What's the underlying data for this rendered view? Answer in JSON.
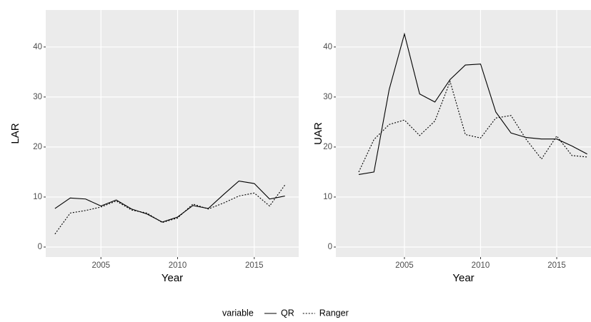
{
  "chart_data": [
    {
      "type": "line",
      "x_label": "Year",
      "y_label": "LAR",
      "legend_title": "variable",
      "x": [
        2002,
        2003,
        2004,
        2005,
        2006,
        2007,
        2008,
        2009,
        2010,
        2011,
        2012,
        2013,
        2014,
        2015,
        2016,
        2017
      ],
      "series": [
        {
          "name": "QR",
          "color": "#000000",
          "dash": "solid",
          "values": [
            7.7,
            9.8,
            9.6,
            8.2,
            9.4,
            7.6,
            6.6,
            5.0,
            6.0,
            8.3,
            7.7,
            10.5,
            13.2,
            12.7,
            9.6,
            10.2
          ]
        },
        {
          "name": "Ranger",
          "color": "#000000",
          "dash": "dotted",
          "values": [
            2.6,
            6.8,
            7.3,
            8.0,
            9.2,
            7.4,
            6.8,
            4.9,
            5.8,
            8.6,
            7.6,
            8.8,
            10.2,
            10.8,
            8.2,
            12.4
          ]
        }
      ],
      "xlim": [
        2001.4,
        2017.9
      ],
      "xticks": [
        2005,
        2010,
        2015
      ],
      "ylim": [
        -2,
        47.4
      ],
      "yticks": [
        0,
        10,
        20,
        30,
        40
      ],
      "grid": true
    },
    {
      "type": "line",
      "x_label": "Year",
      "y_label": "UAR",
      "x": [
        2002,
        2003,
        2004,
        2005,
        2006,
        2007,
        2008,
        2009,
        2010,
        2011,
        2012,
        2013,
        2014,
        2015,
        2016,
        2017
      ],
      "series": [
        {
          "name": "QR",
          "color": "#000000",
          "dash": "solid",
          "values": [
            14.5,
            15.0,
            31.5,
            42.6,
            30.6,
            29.0,
            33.5,
            36.4,
            36.6,
            27.0,
            22.8,
            21.9,
            21.6,
            21.6,
            20.2,
            18.6
          ]
        },
        {
          "name": "Ranger",
          "color": "#000000",
          "dash": "dotted",
          "values": [
            15.0,
            21.5,
            24.5,
            25.4,
            22.3,
            25.2,
            33.1,
            22.5,
            21.8,
            25.8,
            26.3,
            21.5,
            17.6,
            22.2,
            18.3,
            18.0
          ]
        }
      ],
      "xlim": [
        2000.5,
        2017.25
      ],
      "xticks": [
        2005,
        2010,
        2015
      ],
      "ylim": [
        -2,
        47.4
      ],
      "yticks": [
        0,
        10,
        20,
        30,
        40
      ],
      "grid": true
    }
  ]
}
